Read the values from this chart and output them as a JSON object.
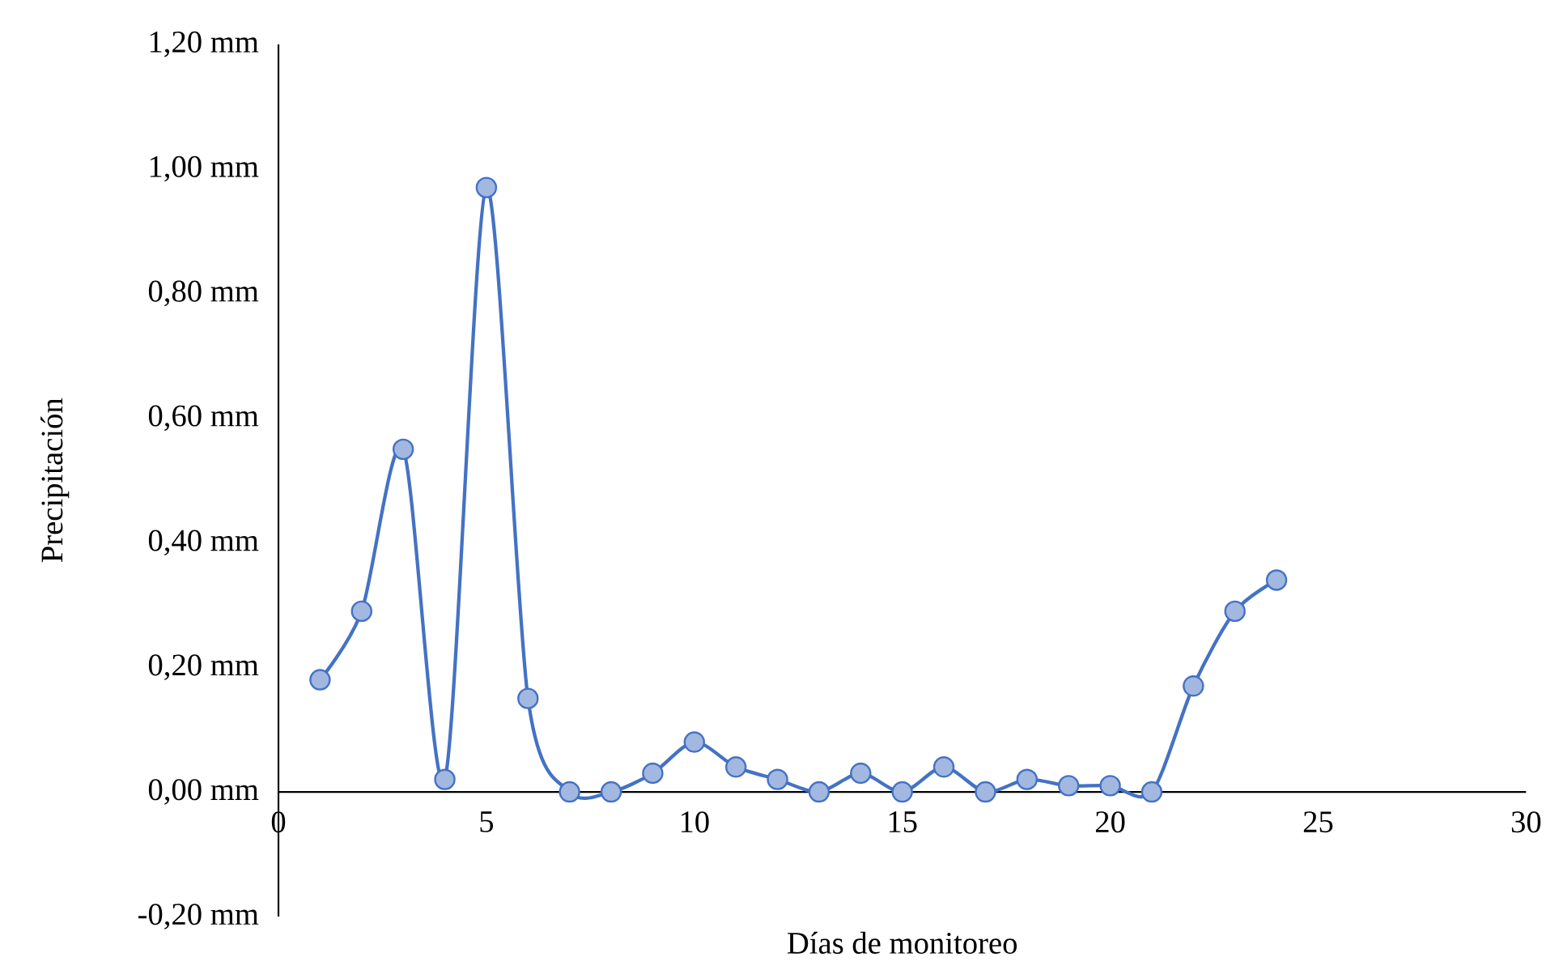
{
  "chart_data": {
    "type": "line",
    "xlabel": "Días de monitoreo",
    "ylabel": "Precipitación",
    "x": [
      1,
      2,
      3,
      4,
      5,
      6,
      7,
      8,
      9,
      10,
      11,
      12,
      13,
      14,
      15,
      16,
      17,
      18,
      19,
      20,
      21,
      22,
      23,
      24
    ],
    "series": [
      {
        "color": "#4472c4",
        "values": [
          0.18,
          0.29,
          0.55,
          0.02,
          0.97,
          0.15,
          0,
          0,
          0.03,
          0.08,
          0.04,
          0.02,
          0,
          0.03,
          0,
          0.04,
          0,
          0.02,
          0.01,
          0.01,
          0,
          0.17,
          0.29,
          0.34
        ]
      }
    ],
    "xlim": [
      0,
      30
    ],
    "xticks": [
      0,
      5,
      10,
      15,
      20,
      25,
      30
    ],
    "ylim": [
      -0.2,
      1.2
    ],
    "yticks": [
      {
        "value": -0.2,
        "label": "-0,20 mm"
      },
      {
        "value": 0,
        "label": "0,00 mm"
      },
      {
        "value": 0.2,
        "label": "0,20 mm"
      },
      {
        "value": 0.4,
        "label": "0,40 mm"
      },
      {
        "value": 0.6,
        "label": "0,60 mm"
      },
      {
        "value": 0.8,
        "label": "0,80 mm"
      },
      {
        "value": 1.0,
        "label": "1,00 mm"
      },
      {
        "value": 1.2,
        "label": "1,20 mm"
      }
    ],
    "grid": false,
    "marker": "circle",
    "line_style": "solid"
  }
}
